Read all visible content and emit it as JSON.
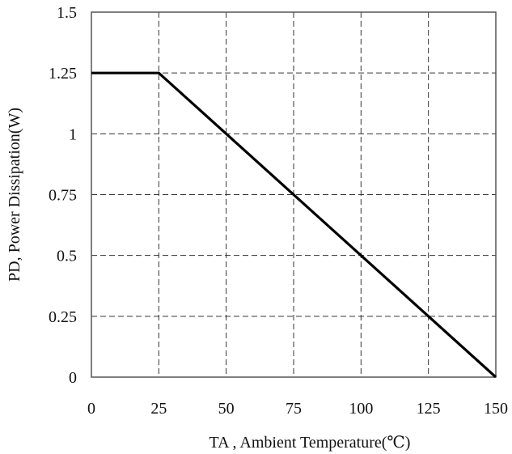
{
  "chart_data": {
    "type": "line",
    "title": "",
    "xlabel": "TA , Ambient Temperature(℃)",
    "ylabel": "PD, Power Dissipation(W)",
    "xlim": [
      0,
      150
    ],
    "ylim": [
      0,
      1.5
    ],
    "x_ticks": [
      0,
      25,
      50,
      75,
      100,
      125,
      150
    ],
    "x_tick_labels": [
      "0",
      "25",
      "50",
      "75",
      "100",
      "125",
      "150"
    ],
    "y_ticks": [
      0,
      0.25,
      0.5,
      0.75,
      1,
      1.25,
      1.5
    ],
    "y_tick_labels": [
      "0",
      "0.25",
      "0.5",
      "0.75",
      "1",
      "1.25",
      "1.5"
    ],
    "grid": true,
    "grid_style": "dashed",
    "legend": "none",
    "series": [
      {
        "color": "#000000",
        "x": [
          0,
          25,
          150
        ],
        "y": [
          1.25,
          1.25,
          0
        ]
      }
    ]
  }
}
